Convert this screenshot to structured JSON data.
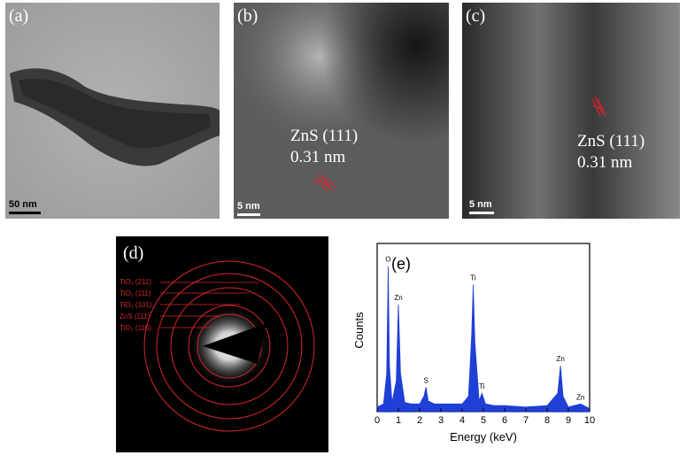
{
  "panels": {
    "a": {
      "label": "(a)",
      "scale": "50 nm"
    },
    "b": {
      "label": "(b)",
      "scale": "5 nm",
      "phase": "ZnS (111)",
      "spacing": "0.31 nm"
    },
    "c": {
      "label": "(c)",
      "scale": "5 nm",
      "phase": "ZnS (111)",
      "spacing": "0.31 nm"
    },
    "d": {
      "label": "(d)",
      "rings": [
        "TiO₂ (211)",
        "TiO₂ (111)",
        "TiO₂ (101)",
        "ZnS (111)",
        "TiO₂ (110)"
      ]
    },
    "e": {
      "label": "(e)"
    }
  },
  "colors": {
    "ring": "#d8262a",
    "spectrum": "#1f3fd6",
    "lattice": "#e0202a"
  },
  "chart_data": {
    "type": "area",
    "xlabel": "Energy (keV)",
    "ylabel": "Counts",
    "xlim": [
      0,
      10
    ],
    "xticks": [
      "0",
      "1",
      "2",
      "3",
      "4",
      "5",
      "6",
      "7",
      "8",
      "9",
      "10"
    ],
    "grid": false,
    "series": [
      {
        "x": [
          0,
          0.3,
          0.45,
          0.52,
          0.58,
          0.7,
          0.9,
          1.0,
          1.1,
          1.3,
          1.6,
          2.0,
          2.2,
          2.3,
          2.4,
          2.7,
          3.0,
          3.5,
          4.0,
          4.3,
          4.45,
          4.52,
          4.6,
          4.8,
          4.93,
          5.1,
          5.5,
          6.0,
          7.0,
          8.0,
          8.5,
          8.63,
          8.75,
          9.0,
          9.57,
          10.0
        ],
        "values": [
          0.03,
          0.05,
          0.25,
          0.95,
          0.3,
          0.06,
          0.2,
          0.7,
          0.25,
          0.06,
          0.05,
          0.05,
          0.1,
          0.16,
          0.07,
          0.05,
          0.05,
          0.05,
          0.05,
          0.1,
          0.5,
          0.83,
          0.45,
          0.07,
          0.12,
          0.05,
          0.04,
          0.04,
          0.03,
          0.04,
          0.12,
          0.3,
          0.1,
          0.03,
          0.05,
          0.02
        ]
      }
    ],
    "peaks": [
      {
        "label": "O",
        "x": 0.52,
        "y": 0.95
      },
      {
        "label": "Zn",
        "x": 1.0,
        "y": 0.7
      },
      {
        "label": "S",
        "x": 2.3,
        "y": 0.16
      },
      {
        "label": "Ti",
        "x": 4.52,
        "y": 0.83
      },
      {
        "label": "Ti",
        "x": 4.93,
        "y": 0.12
      },
      {
        "label": "Zn",
        "x": 8.63,
        "y": 0.3
      },
      {
        "label": "Zn",
        "x": 9.57,
        "y": 0.05
      }
    ]
  }
}
